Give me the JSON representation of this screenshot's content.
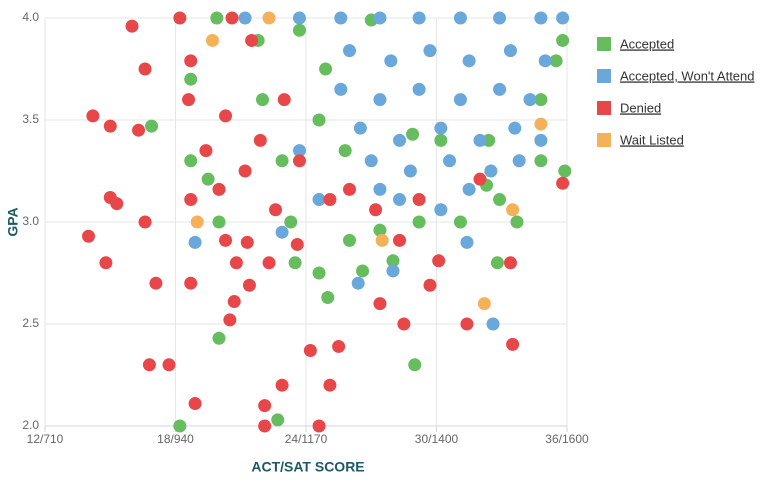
{
  "chart_data": {
    "type": "scatter",
    "x_label": "ACT/SAT SCORE",
    "y_label": "GPA",
    "xlim": [
      12,
      36
    ],
    "ylim": [
      2,
      4
    ],
    "xticks": [
      {
        "value": 12,
        "label": "12/710"
      },
      {
        "value": 18,
        "label": "18/940"
      },
      {
        "value": 24,
        "label": "24/1170"
      },
      {
        "value": 30,
        "label": "30/1400"
      },
      {
        "value": 36,
        "label": "36/1600"
      }
    ],
    "yticks": [
      {
        "value": 2,
        "label": "2.0"
      },
      2.5,
      {
        "value": 3,
        "label": "3.0"
      },
      3.5,
      {
        "value": 4,
        "label": "4.0"
      }
    ],
    "grid": true,
    "legend": "right",
    "series": [
      {
        "name": "Accepted",
        "color": "#66bd5e",
        "x": [
          18.2,
          22.7,
          20.0,
          23.5,
          24.6,
          25.0,
          29.0,
          26.6,
          28.0,
          32.8,
          33.7,
          16.9,
          18.7,
          19.5,
          20.0,
          19.9,
          21.8,
          22.0,
          22.9,
          23.3,
          24.9,
          25.8,
          27.0,
          28.9,
          30.2,
          31.1,
          32.9,
          34.8,
          35.8,
          35.9,
          34.8,
          35.5,
          26.0,
          29.2,
          27.4,
          32.4,
          23.7,
          24.6,
          32.3,
          18.7
        ],
        "values": [
          2.0,
          2.03,
          2.43,
          2.8,
          2.75,
          2.63,
          2.3,
          2.76,
          2.81,
          2.8,
          3.0,
          3.47,
          3.3,
          3.21,
          3.0,
          4.0,
          3.89,
          3.6,
          3.3,
          3.0,
          3.75,
          3.35,
          3.99,
          3.43,
          3.4,
          3.0,
          3.11,
          3.3,
          3.89,
          3.25,
          3.6,
          3.79,
          2.91,
          3.0,
          2.96,
          3.4,
          3.94,
          3.5,
          3.18,
          3.7
        ]
      },
      {
        "name": "Accepted, Won't Attend",
        "color": "#6aa7da",
        "x": [
          18.9,
          21.2,
          22.9,
          26.4,
          28.0,
          32.6,
          31.4,
          23.7,
          25.6,
          27.4,
          29.2,
          31.1,
          32.9,
          34.8,
          35.8,
          26.0,
          27.9,
          29.7,
          31.5,
          33.4,
          35.0,
          25.6,
          27.4,
          29.2,
          31.1,
          32.9,
          34.3,
          26.5,
          28.3,
          30.2,
          32.0,
          33.6,
          27.0,
          28.8,
          30.6,
          32.5,
          33.8,
          28.3,
          30.2,
          31.5,
          27.4,
          24.6,
          23.7,
          34.8
        ],
        "values": [
          2.9,
          4.0,
          2.95,
          2.7,
          2.76,
          2.5,
          2.9,
          4.0,
          4.0,
          4.0,
          4.0,
          4.0,
          4.0,
          4.0,
          4.0,
          3.84,
          3.79,
          3.84,
          3.79,
          3.84,
          3.79,
          3.65,
          3.6,
          3.65,
          3.6,
          3.65,
          3.6,
          3.46,
          3.4,
          3.46,
          3.4,
          3.46,
          3.3,
          3.25,
          3.3,
          3.25,
          3.3,
          3.11,
          3.06,
          3.16,
          3.16,
          3.11,
          3.35,
          3.4
        ]
      },
      {
        "name": "Denied",
        "color": "#e8474a",
        "x": [
          16.0,
          14.2,
          15.0,
          16.3,
          16.6,
          14.0,
          14.8,
          15.0,
          15.3,
          16.6,
          17.1,
          16.8,
          17.7,
          18.7,
          18.9,
          18.2,
          18.6,
          18.7,
          20.6,
          20.5,
          20.7,
          21.3,
          20.8,
          22.1,
          22.1,
          22.9,
          24.2,
          24.6,
          25.1,
          25.5,
          22.3,
          21.4,
          20.3,
          19.4,
          21.9,
          21.2,
          23.7,
          20.0,
          22.6,
          25.1,
          26.0,
          27.2,
          29.2,
          28.3,
          27.4,
          28.5,
          30.1,
          31.4,
          33.4,
          33.5,
          35.8,
          29.7,
          21.5,
          18.7,
          23.0,
          23.6,
          20.3,
          32.0
        ],
        "values": [
          3.96,
          3.52,
          3.47,
          3.45,
          3.75,
          2.93,
          2.8,
          3.12,
          3.09,
          3.0,
          2.7,
          2.3,
          2.3,
          2.7,
          2.11,
          4.0,
          3.6,
          3.11,
          4.0,
          2.52,
          2.61,
          2.9,
          2.8,
          2.1,
          2.0,
          2.2,
          2.37,
          2.0,
          2.2,
          2.39,
          2.8,
          2.69,
          3.52,
          3.35,
          3.4,
          3.25,
          3.3,
          3.16,
          3.06,
          3.11,
          3.16,
          3.06,
          3.11,
          2.91,
          2.6,
          2.5,
          2.81,
          2.5,
          2.8,
          2.4,
          3.19,
          2.69,
          3.89,
          3.79,
          3.6,
          2.89,
          2.91,
          3.21
        ]
      },
      {
        "name": "Wait Listed",
        "color": "#f5b15a",
        "x": [
          19.7,
          22.3,
          19.0,
          32.2,
          34.8,
          33.5,
          27.5
        ],
        "values": [
          3.89,
          4.0,
          3.0,
          2.6,
          3.48,
          3.06,
          2.91
        ]
      }
    ]
  }
}
